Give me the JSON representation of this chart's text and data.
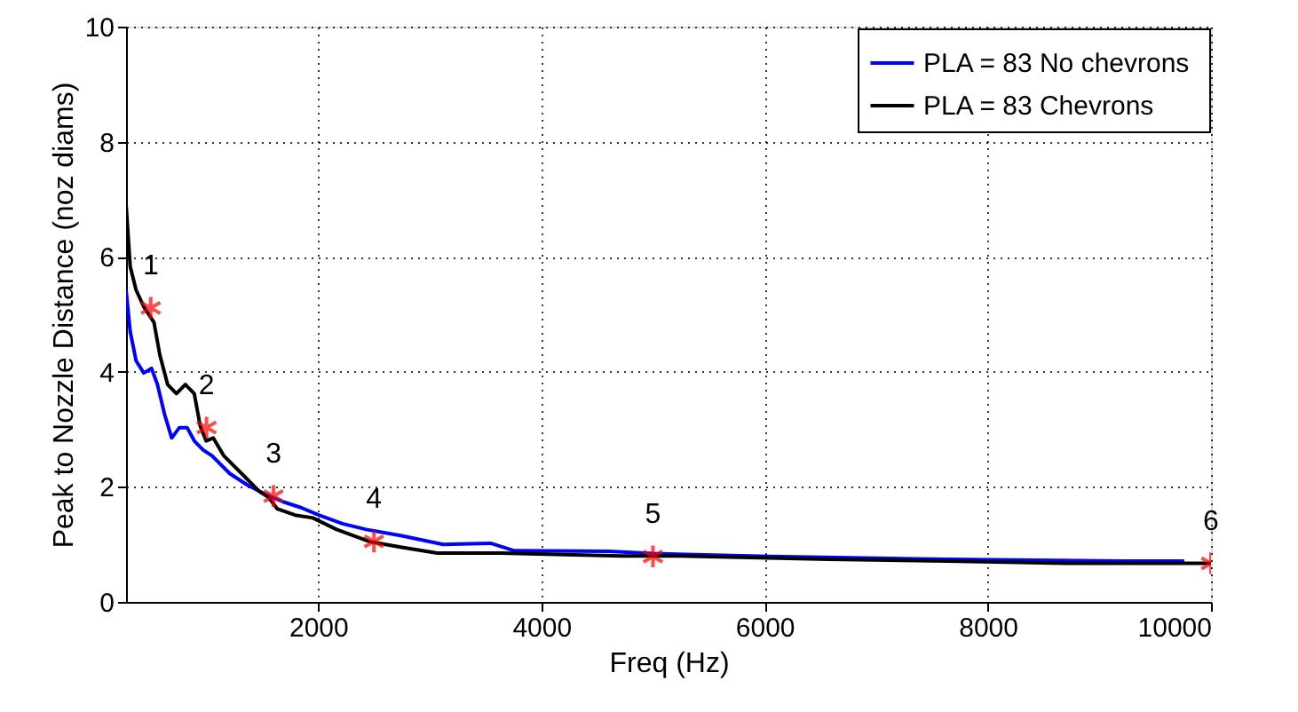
{
  "chart_data": {
    "type": "line",
    "xlabel": "Freq (Hz)",
    "ylabel": "Peak to Nozzle Distance (noz diams)",
    "xlim": [
      279,
      10000
    ],
    "xticks": [
      2000,
      4000,
      6000,
      8000,
      10000
    ],
    "ylim": [
      0,
      10
    ],
    "yticks": [
      0,
      2,
      4,
      6,
      8,
      10
    ],
    "grid": true,
    "legend": "top right",
    "line_style": "solid",
    "series": [
      {
        "name": "PLA = 83  No chevrons",
        "color": "#0000ff",
        "x": [
          279,
          316,
          369,
          438,
          507,
          560,
          624,
          688,
          757,
          826,
          890,
          970,
          1049,
          1209,
          1368,
          1527,
          1687,
          1846,
          2005,
          2218,
          2430,
          2749,
          3120,
          3545,
          3758,
          4607,
          5000,
          6042,
          7635,
          9229,
          9760
        ],
        "values": [
          5.42,
          4.7,
          4.19,
          3.98,
          4.06,
          3.78,
          3.26,
          2.85,
          3.03,
          3.03,
          2.8,
          2.64,
          2.54,
          2.23,
          2.03,
          1.87,
          1.74,
          1.64,
          1.51,
          1.36,
          1.26,
          1.15,
          1.0,
          1.02,
          0.89,
          0.88,
          0.84,
          0.79,
          0.74,
          0.71,
          0.71
        ]
      },
      {
        "name": "PLA = 83  Chevrons",
        "color": "#000000",
        "x": [
          279,
          316,
          369,
          438,
          529,
          582,
          651,
          730,
          810,
          890,
          943,
          996,
          1060,
          1155,
          1315,
          1474,
          1554,
          1633,
          1793,
          1952,
          2165,
          2457,
          2749,
          3067,
          3633,
          4714,
          5245,
          6574,
          7635,
          8698,
          10000
        ],
        "values": [
          6.91,
          5.83,
          5.42,
          5.13,
          4.86,
          4.29,
          3.78,
          3.62,
          3.78,
          3.62,
          3.06,
          2.8,
          2.85,
          2.54,
          2.23,
          1.92,
          1.82,
          1.62,
          1.51,
          1.46,
          1.26,
          1.05,
          0.95,
          0.85,
          0.85,
          0.8,
          0.8,
          0.74,
          0.71,
          0.67,
          0.67
        ]
      },
      {
        "type": "scatter",
        "marker": "cross",
        "color": "#ff0000",
        "x": [
          500,
          1000,
          1600,
          2500,
          5000,
          10000
        ],
        "values": [
          5.11,
          3.03,
          1.84,
          1.05,
          0.79,
          0.67
        ]
      }
    ],
    "annotations": [
      {
        "text": "1",
        "x": 500,
        "y": 5.11
      },
      {
        "text": "2",
        "x": 1000,
        "y": 3.03
      },
      {
        "text": "3",
        "x": 1600,
        "y": 1.84
      },
      {
        "text": "4",
        "x": 2500,
        "y": 1.05
      },
      {
        "text": "5",
        "x": 5000,
        "y": 0.79
      },
      {
        "text": "6",
        "x": 10000,
        "y": 0.67
      }
    ]
  }
}
